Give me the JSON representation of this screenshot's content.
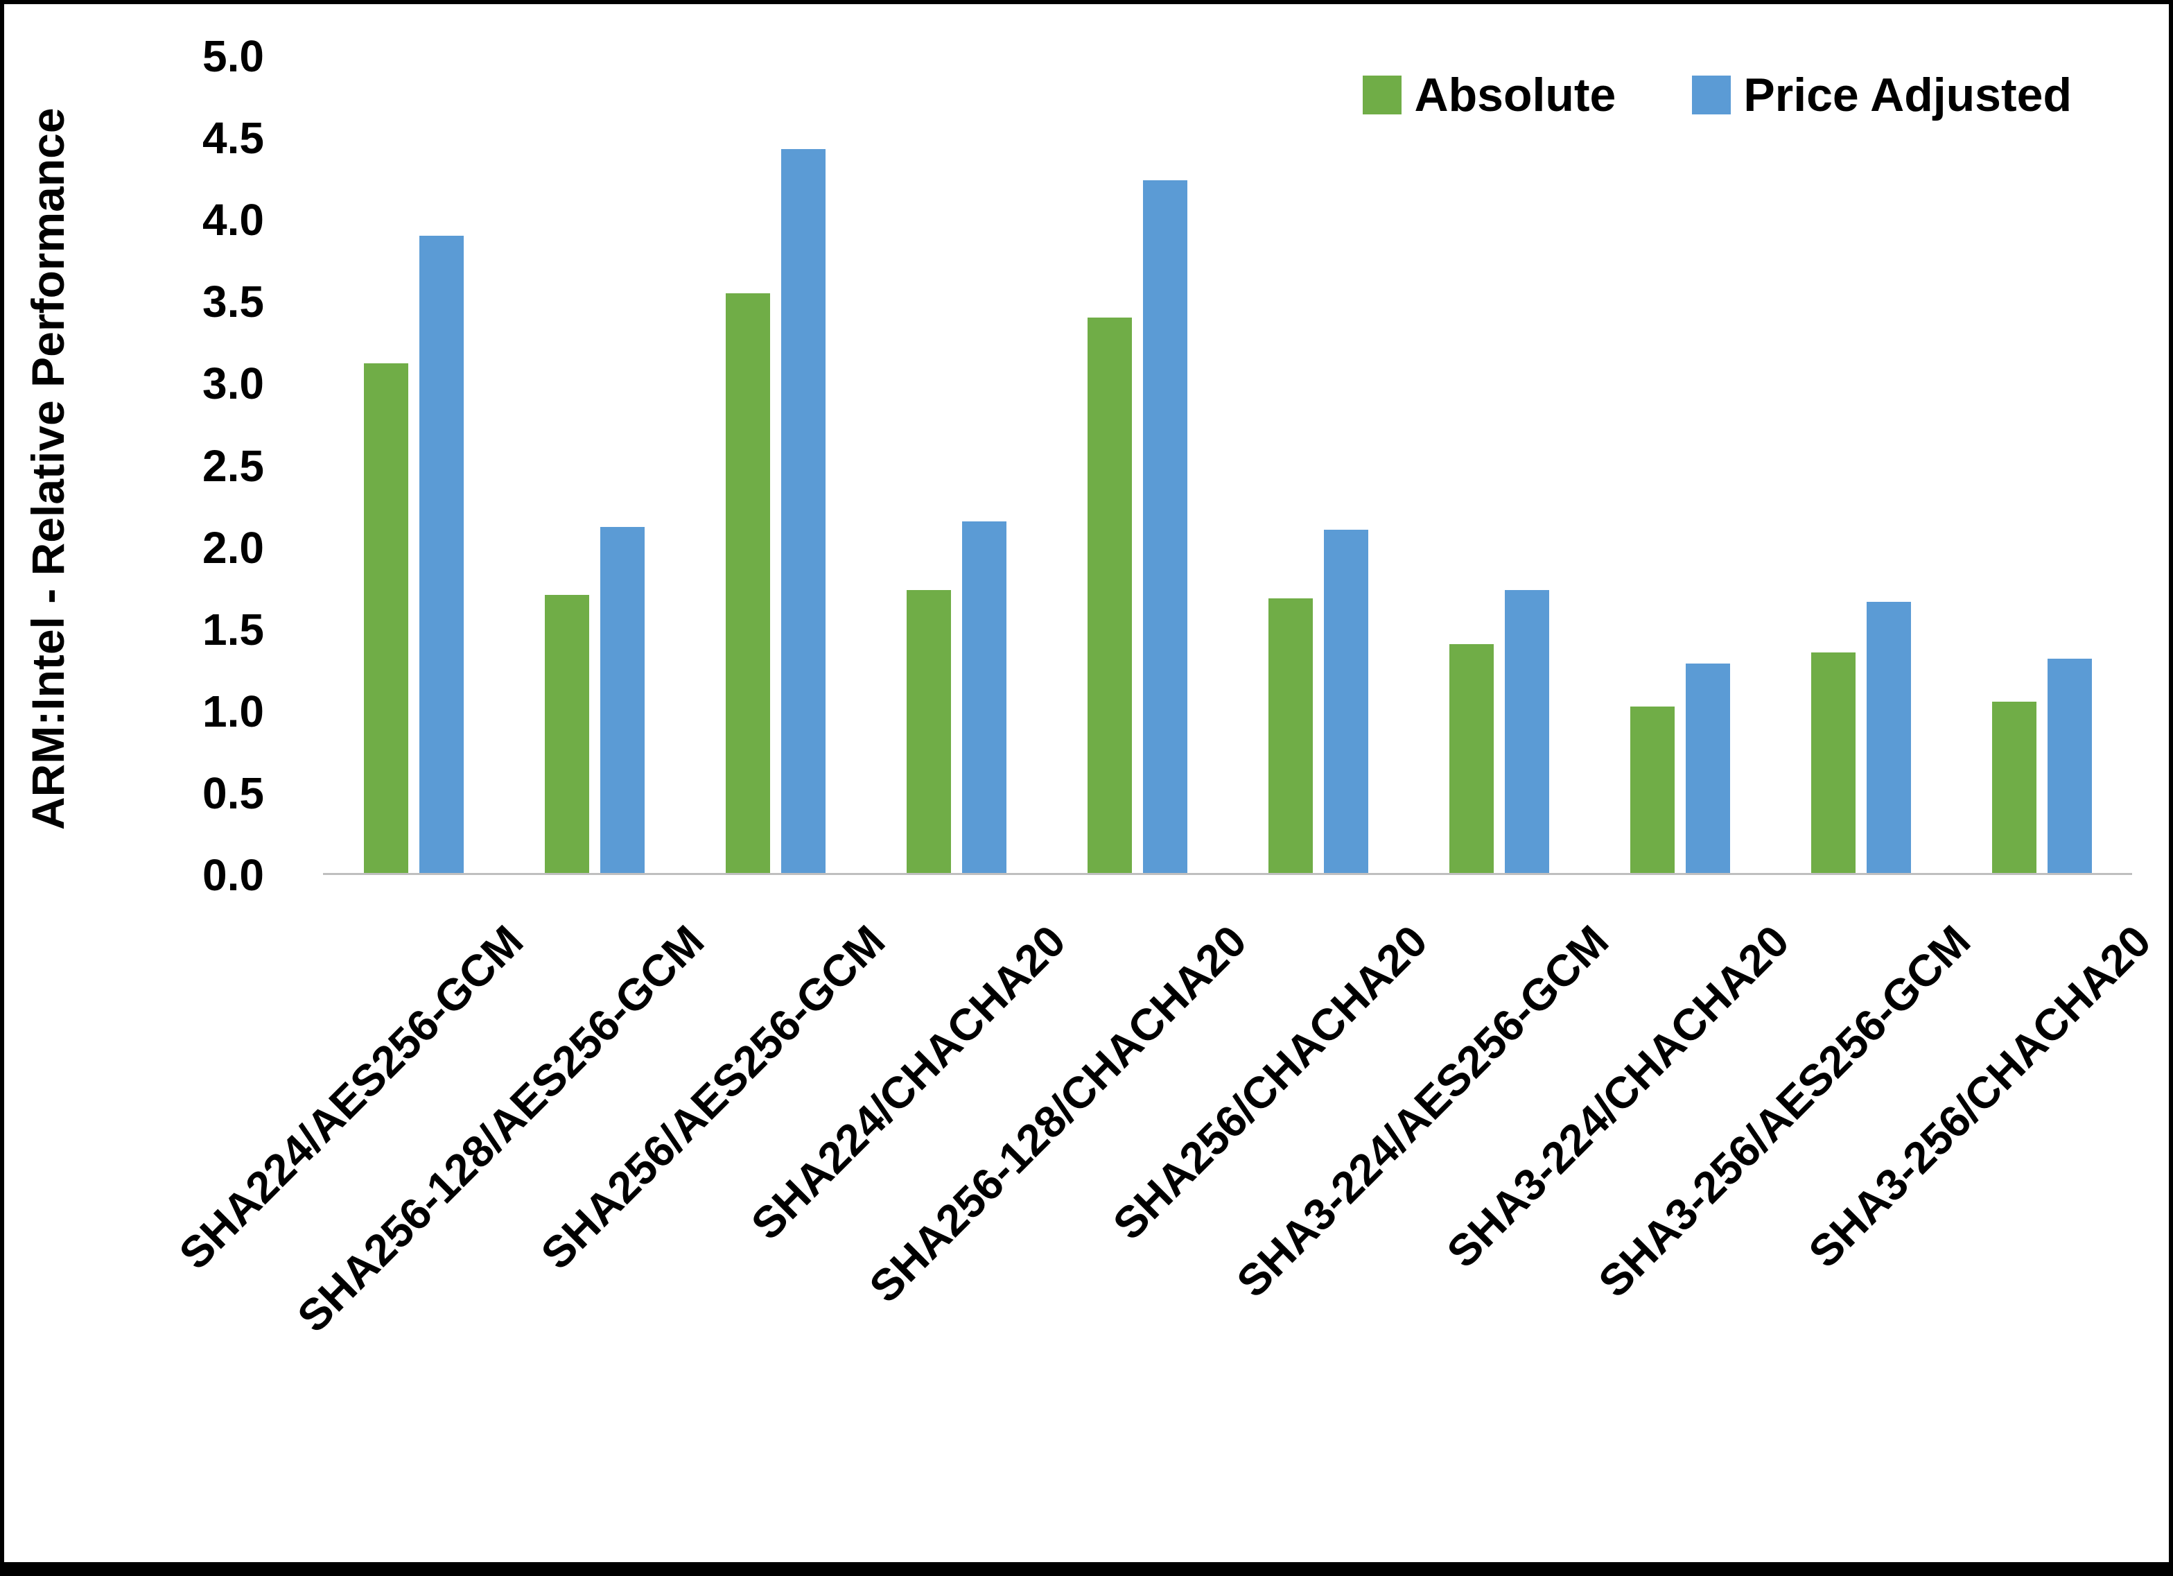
{
  "chart_data": {
    "type": "bar",
    "title": "",
    "xlabel": "",
    "ylabel": "ARM:Intel - Relative Performance",
    "ylim": [
      0,
      5
    ],
    "ytick_step": 0.5,
    "yticks": [
      "5.0",
      "4.5",
      "4.0",
      "3.5",
      "3.0",
      "2.5",
      "2.0",
      "1.5",
      "1.0",
      "0.5",
      "0.0"
    ],
    "grid": false,
    "legend_position": "top-right",
    "axis_line_color": "#bfbfbf",
    "categories": [
      "SHA224/AES256-GCM",
      "SHA256-128/AES256-GCM",
      "SHA256/AES256-GCM",
      "SHA224/CHACHA20",
      "SHA256-128/CHACHA20",
      "SHA256/CHACHA20",
      "SHA3-224/AES256-GCM",
      "SHA3-224/CHACHA20",
      "SHA3-256/AES256-GCM",
      "SHA3-256/CHACHA20"
    ],
    "series": [
      {
        "name": "Absolute",
        "color": "#70AD47",
        "values": [
          3.12,
          1.7,
          3.55,
          1.73,
          3.4,
          1.68,
          1.4,
          1.02,
          1.35,
          1.05
        ]
      },
      {
        "name": "Price Adjusted",
        "color": "#5B9BD5",
        "values": [
          3.9,
          2.12,
          4.43,
          2.15,
          4.24,
          2.1,
          1.73,
          1.28,
          1.66,
          1.31
        ]
      }
    ]
  }
}
